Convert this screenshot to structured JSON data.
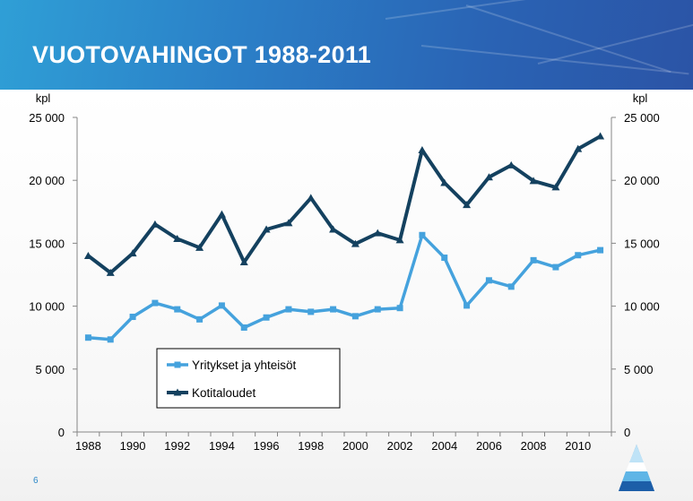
{
  "slide": {
    "title": "VUOTOVAHINGOT 1988-2011",
    "page_number": "6"
  },
  "colors": {
    "banner": "#2b6fbc",
    "series_light": "#45a2dd",
    "series_dark": "#14415f"
  },
  "chart_data": {
    "type": "line",
    "title": "",
    "ylabel_left": "kpl",
    "ylabel_right": "kpl",
    "ylim": [
      0,
      25000
    ],
    "xlim": [
      1988,
      2011
    ],
    "yticks": [
      0,
      5000,
      10000,
      15000,
      20000,
      25000
    ],
    "ytick_labels": [
      "0",
      "5 000",
      "10 000",
      "15 000",
      "20 000",
      "25 000"
    ],
    "xtick_labels": [
      "1988",
      "1990",
      "1992",
      "1994",
      "1996",
      "1998",
      "2000",
      "2002",
      "2004",
      "2006",
      "2008",
      "2010"
    ],
    "grid": false,
    "legend_position": "lower-left",
    "x": [
      1988,
      1989,
      1990,
      1991,
      1992,
      1993,
      1994,
      1995,
      1996,
      1997,
      1998,
      1999,
      2000,
      2001,
      2002,
      2003,
      2004,
      2005,
      2006,
      2007,
      2008,
      2009,
      2010,
      2011
    ],
    "series": [
      {
        "name": "Yritykset ja yhteisöt",
        "color": "#45a2dd",
        "marker": "square",
        "values": [
          7500,
          7350,
          9150,
          10250,
          9750,
          8950,
          10050,
          8300,
          9100,
          9750,
          9550,
          9750,
          9200,
          9750,
          9850,
          15650,
          13850,
          10050,
          12050,
          11550,
          13650,
          13100,
          14050,
          14450
        ]
      },
      {
        "name": "Kotitaloudet",
        "color": "#14415f",
        "marker": "triangle",
        "values": [
          14000,
          12650,
          14200,
          16500,
          15350,
          14650,
          17300,
          13500,
          16100,
          16600,
          18600,
          16100,
          14950,
          15800,
          15250,
          22400,
          19800,
          18050,
          20250,
          21200,
          19950,
          19450,
          22500,
          23500
        ]
      }
    ]
  }
}
